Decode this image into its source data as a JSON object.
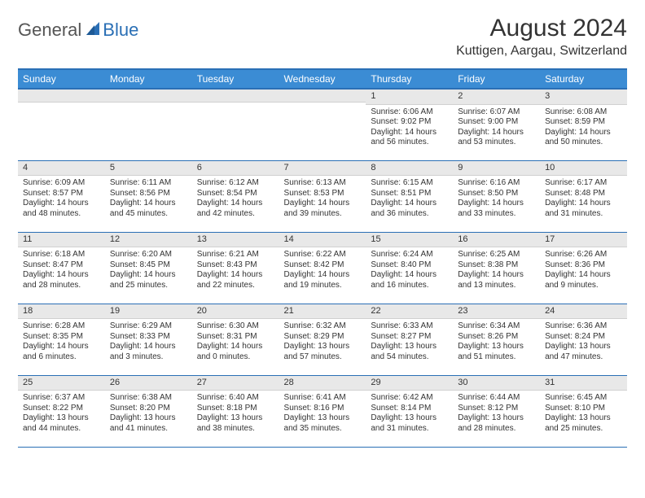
{
  "brand": {
    "word1": "General",
    "word2": "Blue"
  },
  "title": {
    "month_year": "August 2024",
    "location": "Kuttigen, Aargau, Switzerland"
  },
  "colors": {
    "header_bg": "#3b8cd4",
    "header_border": "#2a6fb5",
    "daynum_bg": "#e8e8e8",
    "text": "#333333",
    "brand_gray": "#555555",
    "brand_blue": "#2a6fb5",
    "page_bg": "#ffffff"
  },
  "weekdays": [
    "Sunday",
    "Monday",
    "Tuesday",
    "Wednesday",
    "Thursday",
    "Friday",
    "Saturday"
  ],
  "weeks": [
    [
      {
        "day": "",
        "sunrise": "",
        "sunset": "",
        "daylight": ""
      },
      {
        "day": "",
        "sunrise": "",
        "sunset": "",
        "daylight": ""
      },
      {
        "day": "",
        "sunrise": "",
        "sunset": "",
        "daylight": ""
      },
      {
        "day": "",
        "sunrise": "",
        "sunset": "",
        "daylight": ""
      },
      {
        "day": "1",
        "sunrise": "Sunrise: 6:06 AM",
        "sunset": "Sunset: 9:02 PM",
        "daylight": "Daylight: 14 hours and 56 minutes."
      },
      {
        "day": "2",
        "sunrise": "Sunrise: 6:07 AM",
        "sunset": "Sunset: 9:00 PM",
        "daylight": "Daylight: 14 hours and 53 minutes."
      },
      {
        "day": "3",
        "sunrise": "Sunrise: 6:08 AM",
        "sunset": "Sunset: 8:59 PM",
        "daylight": "Daylight: 14 hours and 50 minutes."
      }
    ],
    [
      {
        "day": "4",
        "sunrise": "Sunrise: 6:09 AM",
        "sunset": "Sunset: 8:57 PM",
        "daylight": "Daylight: 14 hours and 48 minutes."
      },
      {
        "day": "5",
        "sunrise": "Sunrise: 6:11 AM",
        "sunset": "Sunset: 8:56 PM",
        "daylight": "Daylight: 14 hours and 45 minutes."
      },
      {
        "day": "6",
        "sunrise": "Sunrise: 6:12 AM",
        "sunset": "Sunset: 8:54 PM",
        "daylight": "Daylight: 14 hours and 42 minutes."
      },
      {
        "day": "7",
        "sunrise": "Sunrise: 6:13 AM",
        "sunset": "Sunset: 8:53 PM",
        "daylight": "Daylight: 14 hours and 39 minutes."
      },
      {
        "day": "8",
        "sunrise": "Sunrise: 6:15 AM",
        "sunset": "Sunset: 8:51 PM",
        "daylight": "Daylight: 14 hours and 36 minutes."
      },
      {
        "day": "9",
        "sunrise": "Sunrise: 6:16 AM",
        "sunset": "Sunset: 8:50 PM",
        "daylight": "Daylight: 14 hours and 33 minutes."
      },
      {
        "day": "10",
        "sunrise": "Sunrise: 6:17 AM",
        "sunset": "Sunset: 8:48 PM",
        "daylight": "Daylight: 14 hours and 31 minutes."
      }
    ],
    [
      {
        "day": "11",
        "sunrise": "Sunrise: 6:18 AM",
        "sunset": "Sunset: 8:47 PM",
        "daylight": "Daylight: 14 hours and 28 minutes."
      },
      {
        "day": "12",
        "sunrise": "Sunrise: 6:20 AM",
        "sunset": "Sunset: 8:45 PM",
        "daylight": "Daylight: 14 hours and 25 minutes."
      },
      {
        "day": "13",
        "sunrise": "Sunrise: 6:21 AM",
        "sunset": "Sunset: 8:43 PM",
        "daylight": "Daylight: 14 hours and 22 minutes."
      },
      {
        "day": "14",
        "sunrise": "Sunrise: 6:22 AM",
        "sunset": "Sunset: 8:42 PM",
        "daylight": "Daylight: 14 hours and 19 minutes."
      },
      {
        "day": "15",
        "sunrise": "Sunrise: 6:24 AM",
        "sunset": "Sunset: 8:40 PM",
        "daylight": "Daylight: 14 hours and 16 minutes."
      },
      {
        "day": "16",
        "sunrise": "Sunrise: 6:25 AM",
        "sunset": "Sunset: 8:38 PM",
        "daylight": "Daylight: 14 hours and 13 minutes."
      },
      {
        "day": "17",
        "sunrise": "Sunrise: 6:26 AM",
        "sunset": "Sunset: 8:36 PM",
        "daylight": "Daylight: 14 hours and 9 minutes."
      }
    ],
    [
      {
        "day": "18",
        "sunrise": "Sunrise: 6:28 AM",
        "sunset": "Sunset: 8:35 PM",
        "daylight": "Daylight: 14 hours and 6 minutes."
      },
      {
        "day": "19",
        "sunrise": "Sunrise: 6:29 AM",
        "sunset": "Sunset: 8:33 PM",
        "daylight": "Daylight: 14 hours and 3 minutes."
      },
      {
        "day": "20",
        "sunrise": "Sunrise: 6:30 AM",
        "sunset": "Sunset: 8:31 PM",
        "daylight": "Daylight: 14 hours and 0 minutes."
      },
      {
        "day": "21",
        "sunrise": "Sunrise: 6:32 AM",
        "sunset": "Sunset: 8:29 PM",
        "daylight": "Daylight: 13 hours and 57 minutes."
      },
      {
        "day": "22",
        "sunrise": "Sunrise: 6:33 AM",
        "sunset": "Sunset: 8:27 PM",
        "daylight": "Daylight: 13 hours and 54 minutes."
      },
      {
        "day": "23",
        "sunrise": "Sunrise: 6:34 AM",
        "sunset": "Sunset: 8:26 PM",
        "daylight": "Daylight: 13 hours and 51 minutes."
      },
      {
        "day": "24",
        "sunrise": "Sunrise: 6:36 AM",
        "sunset": "Sunset: 8:24 PM",
        "daylight": "Daylight: 13 hours and 47 minutes."
      }
    ],
    [
      {
        "day": "25",
        "sunrise": "Sunrise: 6:37 AM",
        "sunset": "Sunset: 8:22 PM",
        "daylight": "Daylight: 13 hours and 44 minutes."
      },
      {
        "day": "26",
        "sunrise": "Sunrise: 6:38 AM",
        "sunset": "Sunset: 8:20 PM",
        "daylight": "Daylight: 13 hours and 41 minutes."
      },
      {
        "day": "27",
        "sunrise": "Sunrise: 6:40 AM",
        "sunset": "Sunset: 8:18 PM",
        "daylight": "Daylight: 13 hours and 38 minutes."
      },
      {
        "day": "28",
        "sunrise": "Sunrise: 6:41 AM",
        "sunset": "Sunset: 8:16 PM",
        "daylight": "Daylight: 13 hours and 35 minutes."
      },
      {
        "day": "29",
        "sunrise": "Sunrise: 6:42 AM",
        "sunset": "Sunset: 8:14 PM",
        "daylight": "Daylight: 13 hours and 31 minutes."
      },
      {
        "day": "30",
        "sunrise": "Sunrise: 6:44 AM",
        "sunset": "Sunset: 8:12 PM",
        "daylight": "Daylight: 13 hours and 28 minutes."
      },
      {
        "day": "31",
        "sunrise": "Sunrise: 6:45 AM",
        "sunset": "Sunset: 8:10 PM",
        "daylight": "Daylight: 13 hours and 25 minutes."
      }
    ]
  ]
}
